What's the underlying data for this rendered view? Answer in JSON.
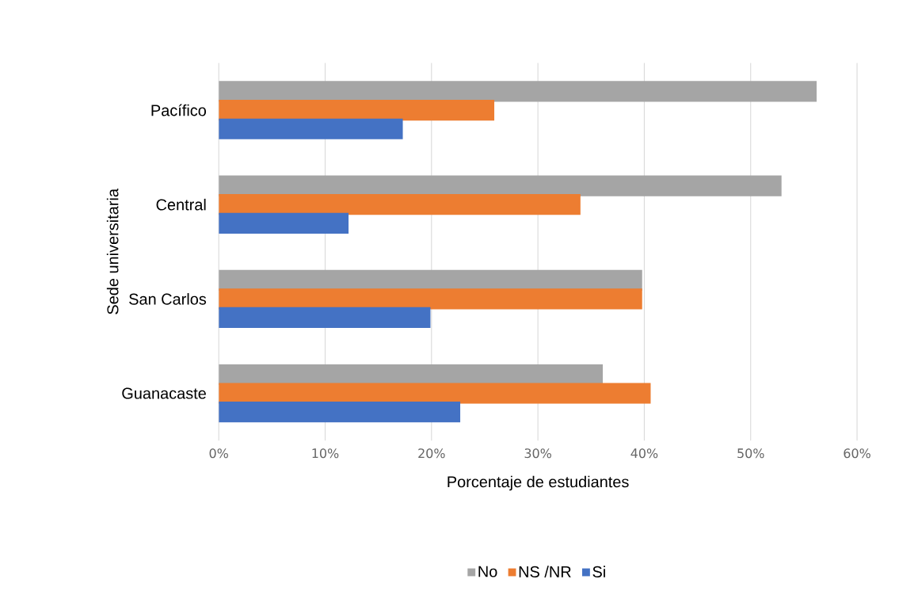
{
  "chart_data": {
    "type": "bar",
    "orientation": "horizontal",
    "xlabel": "Porcentaje de estudiantes",
    "ylabel": "Sede universitaria",
    "categories": [
      "Pacífico",
      "Central",
      "San Carlos",
      "Guanacaste"
    ],
    "series": [
      {
        "name": "No",
        "color": "#a5a5a5",
        "values": [
          56.2,
          52.9,
          39.8,
          36.1
        ]
      },
      {
        "name": "NS /NR",
        "color": "#ed7d31",
        "values": [
          25.9,
          34.0,
          39.8,
          40.6
        ]
      },
      {
        "name": "Si",
        "color": "#4472c4",
        "values": [
          17.3,
          12.2,
          19.9,
          22.7
        ]
      }
    ],
    "xlim": [
      0,
      60
    ],
    "xticks": [
      {
        "value": 0,
        "label": "0%"
      },
      {
        "value": 10,
        "label": "10%"
      },
      {
        "value": 20,
        "label": "20%"
      },
      {
        "value": 30,
        "label": "30%"
      },
      {
        "value": 40,
        "label": "40%"
      },
      {
        "value": 50,
        "label": "50%"
      },
      {
        "value": 60,
        "label": "60%"
      }
    ],
    "grid": "x",
    "legend": "bottom"
  }
}
